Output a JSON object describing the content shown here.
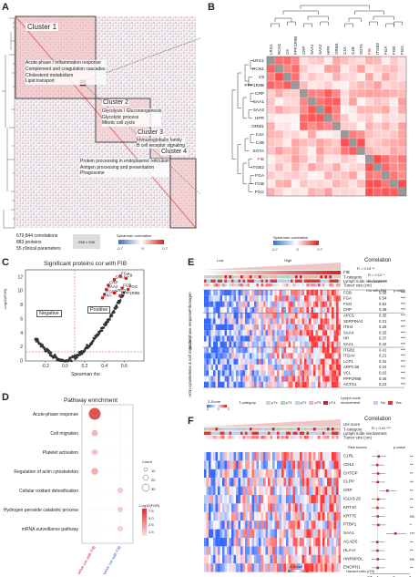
{
  "panels": {
    "a": "A",
    "b": "B",
    "c": "C",
    "d": "D",
    "e": "E",
    "f": "F"
  },
  "panelA": {
    "clusters": [
      "Cluster 1",
      "Cluster 2",
      "Cluster 3",
      "Cluster 4"
    ],
    "cluster1_terms": [
      "Acute-phase / Inflammation response",
      "Complement and coagulation cascades",
      "Cholesterol metabolism",
      "Lipid transport"
    ],
    "cluster2_terms": [
      "Glycolysis / Gluconeogenesis",
      "Glycolytic process",
      "Mitotic cell cycle"
    ],
    "cluster3_terms": [
      "Immunoglobulin family",
      "B cell receptor signaling"
    ],
    "cluster4_terms": [
      "Protein processing in endoplasmic reticulum",
      "Antigen processing and presentation",
      "Phagosome"
    ],
    "stats": [
      "679,844 correlations",
      "883 proteins",
      "55 clinical parameters"
    ],
    "size": "938 x 938",
    "legend_title": "Spearman correlation",
    "legend_ticks": [
      "-0.7",
      "0",
      "0.7"
    ]
  },
  "panelB": {
    "col_labels": [
      "LRG1",
      "RCN1",
      "C9",
      "PPP1R9B",
      "CRP",
      "SAA1",
      "SAA2",
      "HPR",
      "ORM1",
      "C4A",
      "C4B",
      "SGTA",
      "FIB",
      "ITGB2",
      "FGA",
      "FGB",
      "FGG"
    ],
    "row_labels": [
      "LRG1",
      "RCN1",
      "C9",
      "PPP1R9B",
      "CRP",
      "SAA1",
      "SAA2",
      "HPR",
      "ORM1",
      "C4A",
      "C4B",
      "SGTA",
      "FIB",
      "ITGB2",
      "FGA",
      "FGB",
      "FGG"
    ],
    "legend_title": "Spearman correlation",
    "legend_ticks": [
      "-0.7",
      "0",
      "0.7"
    ]
  },
  "panelC": {
    "title": "Significant proteins cor with FIB",
    "ylabel": "-Log10(FDR)",
    "xlabel": "Spearman rho",
    "negative": "Negative",
    "positive": "Positive",
    "point_labels": [
      "SAA1",
      "FGA",
      "C9",
      "CRP",
      "SAA2",
      "FGB",
      "FGG",
      "LRG1",
      "ITGB2",
      "C4A",
      "PPP1R9B"
    ]
  },
  "panelD": {
    "title": "Pathway enrichment",
    "terms": [
      "Acute-phase response",
      "Cell migration",
      "Platelet activation",
      "Regulation of actin cytoskeleton",
      "Cellular oxidant detoxification",
      "Hydrogen peroxide catabolic process",
      "mRNA surveillance pathway"
    ],
    "xcats": [
      "Positive cor with FIB",
      "Negative cor with FIB"
    ],
    "count_title": "Count",
    "count_ticks": [
      "10",
      "20",
      "30"
    ],
    "fdr_title": "-Log10(FDR)",
    "fdr_ticks": [
      "7.5",
      "5.0",
      "2.5",
      "1.5"
    ]
  },
  "panelE": {
    "low": "Low",
    "high": "High",
    "tracks": [
      "FIB",
      "T-category",
      "Lymph node involvement",
      "Tumor size (cm)"
    ],
    "groups": [
      "Fibrinogen",
      "Acute-phase response",
      "Actin cytoskeleton & cell migration"
    ],
    "genes": [
      "FGB",
      "FGA",
      "FGG",
      "CRP",
      "APCS",
      "SERPINA3",
      "ITIH4",
      "SAA4",
      "HP",
      "SAA1",
      "ITGB2",
      "ITGAV",
      "LCP1",
      "ARPC1B",
      "VCL",
      "PPP1R9B",
      "ACTG1"
    ],
    "cor": [
      "0.58",
      "0.54",
      "0.52",
      "0.48",
      "0.35",
      "0.21",
      "0.28",
      "0.25",
      "0.37",
      "0.42",
      "0.41",
      "0.21",
      "0.31",
      "0.24",
      "0.15",
      "0.45",
      "0.23"
    ],
    "pval": [
      "***",
      "***",
      "***",
      "***",
      "***",
      "***",
      "***",
      "***",
      "***",
      "***",
      "***",
      "***",
      "***",
      "***",
      "***",
      "***",
      "***"
    ],
    "corr_title": "Correlation",
    "corr_vals": [
      "R = 0.15 **",
      "R = 0.12 *",
      "R = 0.25 ***"
    ],
    "hdr_cor": "Cor with FIB",
    "hdr_p": "p-value",
    "zscore": "Z-Score",
    "z_ticks": [
      "-2",
      "0",
      "2"
    ],
    "tcat_title": "T-category",
    "tcat": [
      "pTx",
      "pT1",
      "pT2",
      "pT3",
      "pT4"
    ],
    "ln_title": "Lymph node involvement",
    "ln": [
      "No",
      "Yes"
    ]
  },
  "panelF": {
    "tracks": [
      "Unl score",
      "T-category",
      "Lymph node involvement",
      "Tumor size (cm)"
    ],
    "genes": [
      "C1RL",
      "CD14",
      "CHTOP",
      "CLPP",
      "CRP",
      "IGLV3-25",
      "KRT10",
      "KRT75",
      "PTBP1",
      "SAA1",
      "ACADS",
      "HLA-H",
      "HNRNPDL",
      "ENOPH1"
    ],
    "pval": [
      "**",
      "**",
      "**",
      "**",
      "**",
      "**",
      "**",
      "ns",
      "*",
      "***",
      "**",
      "**",
      "ns",
      "**"
    ],
    "hr": [
      1.05,
      0.97,
      1.02,
      1.0,
      1.6,
      1.02,
      0.98,
      1.0,
      1.03,
      2.1,
      0.97,
      0.98,
      1.0,
      0.99
    ],
    "corr_title": "Correlation",
    "corr_val": "R = 0.41 ***",
    "risk_title": "Risk scores",
    "hdr_p": "p-value",
    "xlabel": "Hazard ratio (OS)",
    "x_ticks": [
      "0.5",
      "1",
      "2",
      "3"
    ],
    "zscore": "Z-Score"
  }
}
